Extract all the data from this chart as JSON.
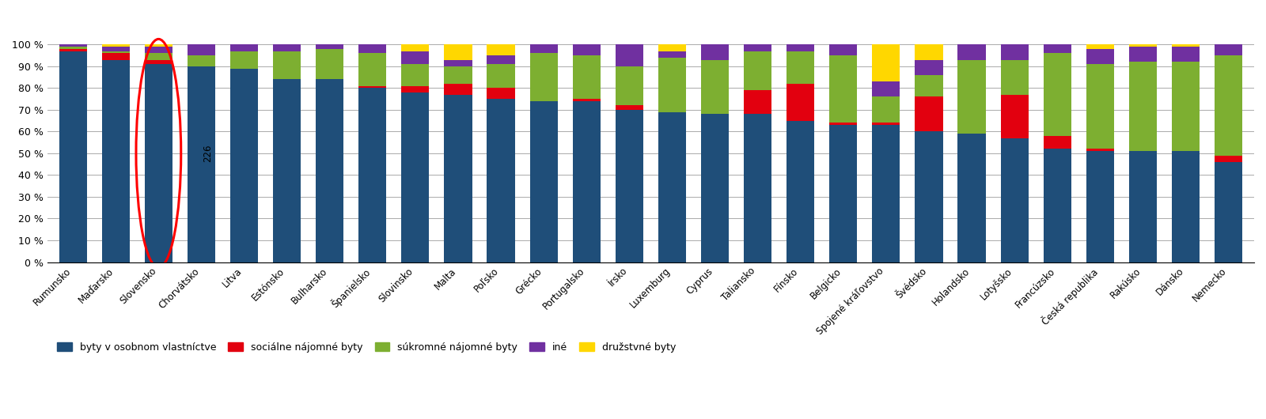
{
  "countries": [
    "Rumunsko",
    "Maďarsko",
    "Slovensko",
    "Chorvátsko",
    "Litva",
    "Estónsko",
    "Bulharsko",
    "Španielsko",
    "Slovinsko",
    "Malta",
    "Poľsko",
    "Grécko",
    "Portugalsko",
    "Írsko",
    "Luxemburg",
    "Cyprus",
    "Taliansko",
    "Fínsko",
    "Belgicko",
    "Spojené kráľovstvo",
    "Švédsko",
    "Holandsko",
    "Lotyšsko",
    "Francúzsko",
    "Česká republika",
    "Rakúsko",
    "Dánsko",
    "Nemecko"
  ],
  "byty_vlastnictvo": [
    97,
    93,
    91,
    90,
    89,
    84,
    84,
    80,
    78,
    77,
    75,
    74,
    74,
    70,
    69,
    68,
    68,
    65,
    63,
    63,
    60,
    59,
    57,
    52,
    51,
    51,
    51,
    46
  ],
  "socialne": [
    1,
    3,
    2,
    0,
    0,
    0,
    0,
    1,
    3,
    5,
    5,
    0,
    1,
    2,
    0,
    0,
    11,
    17,
    1,
    1,
    16,
    0,
    20,
    6,
    1,
    0,
    0,
    3
  ],
  "sukromne": [
    1,
    1,
    3,
    5,
    8,
    13,
    14,
    15,
    10,
    8,
    11,
    22,
    20,
    18,
    25,
    25,
    18,
    15,
    31,
    12,
    10,
    34,
    16,
    38,
    39,
    41,
    41,
    46
  ],
  "ine": [
    1,
    2,
    3,
    5,
    3,
    3,
    2,
    4,
    6,
    3,
    4,
    4,
    5,
    10,
    3,
    7,
    3,
    3,
    5,
    7,
    7,
    7,
    7,
    4,
    7,
    7,
    7,
    5
  ],
  "druzstevne": [
    0,
    1,
    1,
    0,
    0,
    0,
    0,
    0,
    3,
    7,
    5,
    0,
    0,
    0,
    3,
    0,
    0,
    0,
    0,
    17,
    7,
    0,
    0,
    0,
    2,
    1,
    1,
    0
  ],
  "colors": {
    "byty_vlastnictvo": "#1f4e79",
    "socialne": "#e2000f",
    "sukromne": "#7daf31",
    "ine": "#7030a0",
    "druzstevne": "#ffd700"
  },
  "legend_labels": [
    "byty v osobnom vlastníctve",
    "sociálne nájomné byty",
    "súkromné nájomné byty",
    "iné",
    "družstvné byty"
  ],
  "circle_country_index": 2,
  "annotation_text": "226"
}
